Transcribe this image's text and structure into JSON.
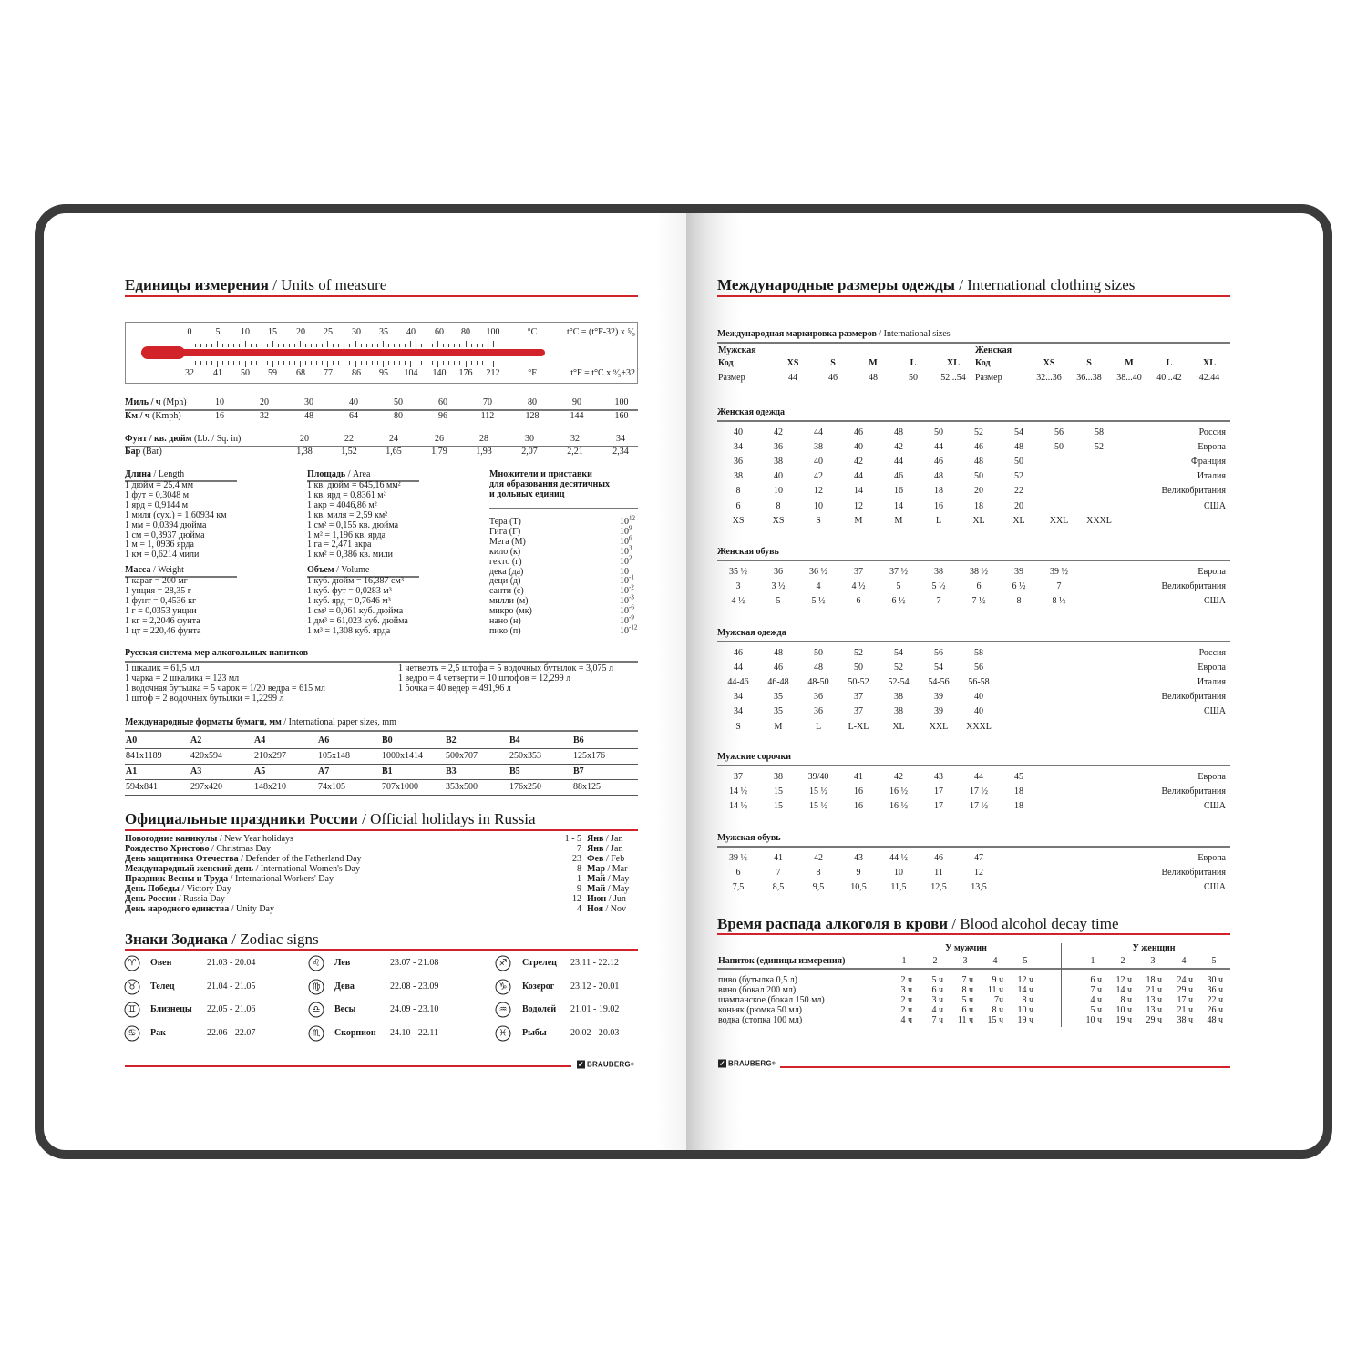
{
  "colors": {
    "accent_red": "#d3232a",
    "cover": "#3b3b3b"
  },
  "units": {
    "title_ru": "Единицы измерения",
    "title_en": "/ Units of measure",
    "thermometer": {
      "celsius": [
        "0",
        "5",
        "10",
        "15",
        "20",
        "25",
        "30",
        "35",
        "40",
        "60",
        "80",
        "100"
      ],
      "fahrenheit": [
        "32",
        "41",
        "50",
        "59",
        "68",
        "77",
        "86",
        "95",
        "104",
        "140",
        "176",
        "212"
      ],
      "c_unit": "°C",
      "f_unit": "°F",
      "c_formula": "t°C = (t°F-32) x ⁵⁄₉",
      "f_formula": "t°F = t°C x ⁹⁄₅+32"
    },
    "speed": {
      "rows": [
        {
          "label_ru": "Миль / ч",
          "label_en": "(Mph)",
          "values": [
            "10",
            "20",
            "30",
            "40",
            "50",
            "60",
            "70",
            "80",
            "90",
            "100"
          ]
        },
        {
          "label_ru": "Км / ч",
          "label_en": "(Kmph)",
          "values": [
            "16",
            "32",
            "48",
            "64",
            "80",
            "96",
            "112",
            "128",
            "144",
            "160"
          ]
        }
      ]
    },
    "pressure": {
      "rows": [
        {
          "label_ru": "Фунт / кв. дюйм",
          "label_en": "(Lb. / Sq. in)",
          "values": [
            "20",
            "22",
            "24",
            "26",
            "28",
            "30",
            "32",
            "34"
          ]
        },
        {
          "label_ru": "Бар",
          "label_en": "(Bar)",
          "values": [
            "1,38",
            "1,52",
            "1,65",
            "1,79",
            "1,93",
            "2,07",
            "2,21",
            "2,34"
          ]
        }
      ]
    },
    "length": {
      "title_ru": "Длина",
      "title_en": "/ Length",
      "items": [
        "1 дюйм = 25,4 мм",
        "1 фут = 0,3048 м",
        "1 ярд = 0,9144 м",
        "1 миля (сух.) = 1,60934 км",
        "1 мм = 0,0394 дюйма",
        "1 см = 0,3937 дюйма",
        "1 м = 1, 0936 ярда",
        "1 км = 0,6214 мили"
      ]
    },
    "weight": {
      "title_ru": "Масса",
      "title_en": "/ Weight",
      "items": [
        "1 карат = 200 мг",
        "1 унция = 28,35 г",
        "1 фунт = 0,4536 кг",
        "1 г = 0,0353 унции",
        "1 кг = 2,2046 фунта",
        "1 цт = 220,46 фунта"
      ]
    },
    "area": {
      "title_ru": "Площадь",
      "title_en": "/ Area",
      "items": [
        "1 кв. дюйм = 645,16 мм²",
        "1 кв. ярд = 0,8361 м²",
        "1 акр = 4046,86 м²",
        "1 кв. миля = 2,59 км²",
        "1 см² = 0,155 кв. дюйма",
        "1 м² = 1,196 кв. ярда",
        "1 га = 2,471 акра",
        "1 км² = 0,386 кв. мили"
      ]
    },
    "volume": {
      "title_ru": "Объем",
      "title_en": "/ Volume",
      "items": [
        "1 куб. дюйм = 16,387 см³",
        "1 куб. фут = 0,0283 м³",
        "1 куб. ярд = 0,7646 м³",
        "1 см³ = 0,061 куб. дюйма",
        "1 дм³ = 61,023 куб. дюйма",
        "1 м³ = 1,308 куб. ярда"
      ]
    },
    "prefixes": {
      "title_lines": [
        "Множители и приставки",
        "для образования десятичных",
        "и дольных единиц"
      ],
      "items": [
        {
          "name": "Тера (Т)",
          "base": "10",
          "exp": "12"
        },
        {
          "name": "Гига (Г)",
          "base": "10",
          "exp": "9"
        },
        {
          "name": "Мега (М)",
          "base": "10",
          "exp": "6"
        },
        {
          "name": "кило (к)",
          "base": "10",
          "exp": "3"
        },
        {
          "name": "гекто (г)",
          "base": "10",
          "exp": "2"
        },
        {
          "name": "дека (да)",
          "base": "10",
          "exp": ""
        },
        {
          "name": "деци (д)",
          "base": "10",
          "exp": "-1"
        },
        {
          "name": "санти (с)",
          "base": "10",
          "exp": "-2"
        },
        {
          "name": "милли (м)",
          "base": "10",
          "exp": "-3"
        },
        {
          "name": "микро (мк)",
          "base": "10",
          "exp": "-6"
        },
        {
          "name": "нано (н)",
          "base": "10",
          "exp": "-9"
        },
        {
          "name": "пико (п)",
          "base": "10",
          "exp": "-12"
        }
      ]
    },
    "alcohol_measures": {
      "title": "Русская система мер алкогольных напитков",
      "left": [
        "1 шкалик = 61,5 мл",
        "1 чарка = 2 шкалика = 123 мл",
        "1 водочная бутылка = 5 чарок = 1/20 ведра = 615 мл",
        "1 штоф = 2 водочных бутылки = 1,2299 л"
      ],
      "right": [
        "1 четверть = 2,5 штофа = 5 водочных бутылок = 3,075 л",
        "1 ведро = 4 четверти = 10 штофов = 12,299 л",
        "1 бочка = 40 ведер = 491,96 л"
      ]
    },
    "paper": {
      "title_ru": "Международные форматы бумаги, мм",
      "title_en": "/ International paper sizes, mm",
      "rows": [
        {
          "names": [
            "A0",
            "A2",
            "A4",
            "A6",
            "B0",
            "B2",
            "B4",
            "B6"
          ],
          "sizes": [
            "841x1189",
            "420x594",
            "210x297",
            "105x148",
            "1000x1414",
            "500x707",
            "250x353",
            "125x176"
          ]
        },
        {
          "names": [
            "A1",
            "A3",
            "A5",
            "A7",
            "B1",
            "B3",
            "B5",
            "B7"
          ],
          "sizes": [
            "594x841",
            "297x420",
            "148x210",
            "74x105",
            "707x1000",
            "353x500",
            "176x250",
            "88x125"
          ]
        }
      ]
    }
  },
  "holidays": {
    "title_ru": "Официальные праздники России",
    "title_en": "/ Official holidays in Russia",
    "items": [
      {
        "ru": "Новогодние каникулы",
        "en": "/ New Year holidays",
        "day": "1 - 5",
        "month_ru": "Янв",
        "month_en": "/ Jan"
      },
      {
        "ru": "Рождество Христово",
        "en": "/ Christmas Day",
        "day": "7",
        "month_ru": "Янв",
        "month_en": "/ Jan"
      },
      {
        "ru": "День защитника Отечества",
        "en": "/ Defender of the Fatherland Day",
        "day": "23",
        "month_ru": "Фев",
        "month_en": "/ Feb"
      },
      {
        "ru": "Международный женский день",
        "en": "/ International Women's Day",
        "day": "8",
        "month_ru": "Мар",
        "month_en": "/ Mar"
      },
      {
        "ru": "Праздник Весны и Труда",
        "en": "/ International Workers' Day",
        "day": "1",
        "month_ru": "Май",
        "month_en": "/ May"
      },
      {
        "ru": "День Победы",
        "en": "/ Victory Day",
        "day": "9",
        "month_ru": "Май",
        "month_en": "/ May"
      },
      {
        "ru": "День России",
        "en": "/ Russia Day",
        "day": "12",
        "month_ru": "Июн",
        "month_en": "/ Jun"
      },
      {
        "ru": "День народного единства",
        "en": "/ Unity Day",
        "day": "4",
        "month_ru": "Ноя",
        "month_en": "/ Nov"
      }
    ]
  },
  "zodiac": {
    "title_ru": "Знаки Зодиака",
    "title_en": "/ Zodiac signs",
    "columns": [
      [
        {
          "name": "Овен",
          "dates": "21.03 - 20.04",
          "icon": "aries-icon",
          "glyph": "♈"
        },
        {
          "name": "Телец",
          "dates": "21.04 - 21.05",
          "icon": "taurus-icon",
          "glyph": "♉"
        },
        {
          "name": "Близнецы",
          "dates": "22.05 - 21.06",
          "icon": "gemini-icon",
          "glyph": "♊"
        },
        {
          "name": "Рак",
          "dates": "22.06 - 22.07",
          "icon": "cancer-icon",
          "glyph": "♋"
        }
      ],
      [
        {
          "name": "Лев",
          "dates": "23.07 - 21.08",
          "icon": "leo-icon",
          "glyph": "♌"
        },
        {
          "name": "Дева",
          "dates": "22.08 - 23.09",
          "icon": "virgo-icon",
          "glyph": "♍"
        },
        {
          "name": "Весы",
          "dates": "24.09 - 23.10",
          "icon": "libra-icon",
          "glyph": "♎"
        },
        {
          "name": "Скорпион",
          "dates": "24.10 - 22.11",
          "icon": "scorpio-icon",
          "glyph": "♏"
        }
      ],
      [
        {
          "name": "Стрелец",
          "dates": "23.11 - 22.12",
          "icon": "sagittarius-icon",
          "glyph": "♐"
        },
        {
          "name": "Козерог",
          "dates": "23.12 - 20.01",
          "icon": "capricorn-icon",
          "glyph": "♑"
        },
        {
          "name": "Водолей",
          "dates": "21.01 - 19.02",
          "icon": "aquarius-icon",
          "glyph": "♒"
        },
        {
          "name": "Рыбы",
          "dates": "20.02 - 20.03",
          "icon": "pisces-icon",
          "glyph": "♓"
        }
      ]
    ]
  },
  "brand": {
    "name": "BRAUBERG",
    "mark": "®"
  },
  "clothing": {
    "title_ru": "Международные размеры одежды",
    "title_en": "/ International clothing sizes",
    "marking": {
      "title_ru": "Международная маркировка размеров",
      "title_en": "/ International sizes",
      "men": {
        "label": "Мужская",
        "code_label": "Код",
        "size_label": "Размер",
        "codes": [
          "XS",
          "S",
          "M",
          "L",
          "XL"
        ],
        "sizes": [
          "44",
          "46",
          "48",
          "50",
          "52...54"
        ]
      },
      "women": {
        "label": "Женская",
        "code_label": "Код",
        "size_label": "Размер",
        "codes": [
          "XS",
          "S",
          "M",
          "L",
          "XL"
        ],
        "sizes": [
          "32...36",
          "36...38",
          "38...40",
          "40...42",
          "42.44"
        ]
      }
    },
    "tables": [
      {
        "title": "Женская одежда",
        "rows": [
          {
            "values": [
              "40",
              "42",
              "44",
              "46",
              "48",
              "50",
              "52",
              "54",
              "56",
              "58"
            ],
            "country": "Россия"
          },
          {
            "values": [
              "34",
              "36",
              "38",
              "40",
              "42",
              "44",
              "46",
              "48",
              "50",
              "52"
            ],
            "country": "Европа"
          },
          {
            "values": [
              "36",
              "38",
              "40",
              "42",
              "44",
              "46",
              "48",
              "50"
            ],
            "country": "Франция"
          },
          {
            "values": [
              "38",
              "40",
              "42",
              "44",
              "46",
              "48",
              "50",
              "52"
            ],
            "country": "Италия"
          },
          {
            "values": [
              "8",
              "10",
              "12",
              "14",
              "16",
              "18",
              "20",
              "22"
            ],
            "country": "Великобритания"
          },
          {
            "values": [
              "6",
              "8",
              "10",
              "12",
              "14",
              "16",
              "18",
              "20"
            ],
            "country": "США"
          },
          {
            "values": [
              "XS",
              "XS",
              "S",
              "M",
              "M",
              "L",
              "XL",
              "XL",
              "XXL",
              "XXXL"
            ],
            "country": ""
          }
        ]
      },
      {
        "title": "Женская обувь",
        "rows": [
          {
            "values": [
              "35 ½",
              "36",
              "36 ½",
              "37",
              "37 ½",
              "38",
              "38 ½",
              "39",
              "39 ½"
            ],
            "country": "Европа"
          },
          {
            "values": [
              "3",
              "3 ½",
              "4",
              "4 ½",
              "5",
              "5 ½",
              "6",
              "6 ½",
              "7"
            ],
            "country": "Великобритания"
          },
          {
            "values": [
              "4 ½",
              "5",
              "5 ½",
              "6",
              "6 ½",
              "7",
              "7 ½",
              "8",
              "8 ½"
            ],
            "country": "США"
          }
        ]
      },
      {
        "title": "Мужская одежда",
        "rows": [
          {
            "values": [
              "46",
              "48",
              "50",
              "52",
              "54",
              "56",
              "58"
            ],
            "country": "Россия"
          },
          {
            "values": [
              "44",
              "46",
              "48",
              "50",
              "52",
              "54",
              "56"
            ],
            "country": "Европа"
          },
          {
            "values": [
              "44-46",
              "46-48",
              "48-50",
              "50-52",
              "52-54",
              "54-56",
              "56-58"
            ],
            "country": "Италия"
          },
          {
            "values": [
              "34",
              "35",
              "36",
              "37",
              "38",
              "39",
              "40"
            ],
            "country": "Великобритания"
          },
          {
            "values": [
              "34",
              "35",
              "36",
              "37",
              "38",
              "39",
              "40"
            ],
            "country": "США"
          },
          {
            "values": [
              "S",
              "M",
              "L",
              "L-XL",
              "XL",
              "XXL",
              "XXXL"
            ],
            "country": ""
          }
        ]
      },
      {
        "title": "Мужские сорочки",
        "rows": [
          {
            "values": [
              "37",
              "38",
              "39/40",
              "41",
              "42",
              "43",
              "44",
              "45"
            ],
            "country": "Европа"
          },
          {
            "values": [
              "14 ½",
              "15",
              "15 ½",
              "16",
              "16 ½",
              "17",
              "17 ½",
              "18"
            ],
            "country": "Великобритания"
          },
          {
            "values": [
              "14 ½",
              "15",
              "15 ½",
              "16",
              "16 ½",
              "17",
              "17 ½",
              "18"
            ],
            "country": "США"
          }
        ]
      },
      {
        "title": "Мужская обувь",
        "rows": [
          {
            "values": [
              "39 ½",
              "41",
              "42",
              "43",
              "44 ½",
              "46",
              "47"
            ],
            "country": "Европа"
          },
          {
            "values": [
              "6",
              "7",
              "8",
              "9",
              "10",
              "11",
              "12"
            ],
            "country": "Великобритания"
          },
          {
            "values": [
              "7,5",
              "8,5",
              "9,5",
              "10,5",
              "11,5",
              "12,5",
              "13,5"
            ],
            "country": "США"
          }
        ]
      }
    ]
  },
  "alcohol_decay": {
    "title_ru": "Время распада алкоголя в крови",
    "title_en": "/ Blood alcohol decay time",
    "men_label": "У мужчин",
    "women_label": "У женщин",
    "drink_header": "Напиток (единицы измерения)",
    "columns": [
      "1",
      "2",
      "3",
      "4",
      "5"
    ],
    "rows": [
      {
        "drink": "пиво (бутылка 0,5 л)",
        "men": [
          "2 ч",
          "5 ч",
          "7 ч",
          "9 ч",
          "12 ч"
        ],
        "women": [
          "6 ч",
          "12 ч",
          "18 ч",
          "24 ч",
          "30 ч"
        ]
      },
      {
        "drink": "вино (бокал 200 мл)",
        "men": [
          "3 ч",
          "6 ч",
          "8 ч",
          "11 ч",
          "14 ч"
        ],
        "women": [
          "7 ч",
          "14 ч",
          "21 ч",
          "29 ч",
          "36 ч"
        ]
      },
      {
        "drink": "шампанское (бокал 150 мл)",
        "men": [
          "2 ч",
          "3 ч",
          "5 ч",
          "7ч",
          "8 ч"
        ],
        "women": [
          "4 ч",
          "8 ч",
          "13 ч",
          "17 ч",
          "22 ч"
        ]
      },
      {
        "drink": "коньяк (рюмка 50 мл)",
        "men": [
          "2 ч",
          "4 ч",
          "6 ч",
          "8 ч",
          "10 ч"
        ],
        "women": [
          "5 ч",
          "10 ч",
          "13 ч",
          "21 ч",
          "26 ч"
        ]
      },
      {
        "drink": "водка (стопка 100 мл)",
        "men": [
          "4 ч",
          "7 ч",
          "11 ч",
          "15 ч",
          "19 ч"
        ],
        "women": [
          "10 ч",
          "19 ч",
          "29 ч",
          "38 ч",
          "48 ч"
        ]
      }
    ]
  }
}
